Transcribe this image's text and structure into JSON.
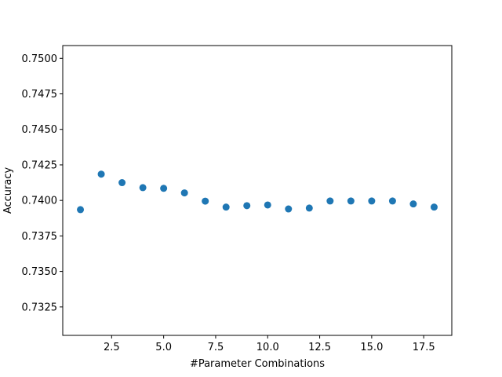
{
  "chart_data": {
    "type": "scatter",
    "title": "",
    "xlabel": "#Parameter Combinations",
    "ylabel": "Accuracy",
    "xlim": [
      0.15,
      18.85
    ],
    "ylim": [
      0.7305,
      0.7509
    ],
    "x_ticks": [
      2.5,
      5.0,
      7.5,
      10.0,
      12.5,
      15.0,
      17.5
    ],
    "x_tick_labels": [
      "2.5",
      "5.0",
      "7.5",
      "10.0",
      "12.5",
      "15.0",
      "17.5"
    ],
    "y_ticks": [
      0.7325,
      0.735,
      0.7375,
      0.74,
      0.7425,
      0.745,
      0.7475,
      0.75
    ],
    "y_tick_labels": [
      "0.7325",
      "0.7350",
      "0.7375",
      "0.7400",
      "0.7425",
      "0.7450",
      "0.7475",
      "0.7500"
    ],
    "grid": false,
    "legend": "none",
    "color": "#1f77b4",
    "series": [
      {
        "x": [
          1,
          2,
          3,
          4,
          5,
          6,
          7,
          8,
          9,
          10,
          11,
          12,
          13,
          14,
          15,
          16,
          17,
          18
        ],
        "y": [
          0.73935,
          0.74185,
          0.74125,
          0.7409,
          0.74085,
          0.74053,
          0.73995,
          0.73953,
          0.73963,
          0.73968,
          0.7394,
          0.73946,
          0.73996,
          0.73996,
          0.73996,
          0.73996,
          0.73975,
          0.73953
        ]
      }
    ]
  }
}
